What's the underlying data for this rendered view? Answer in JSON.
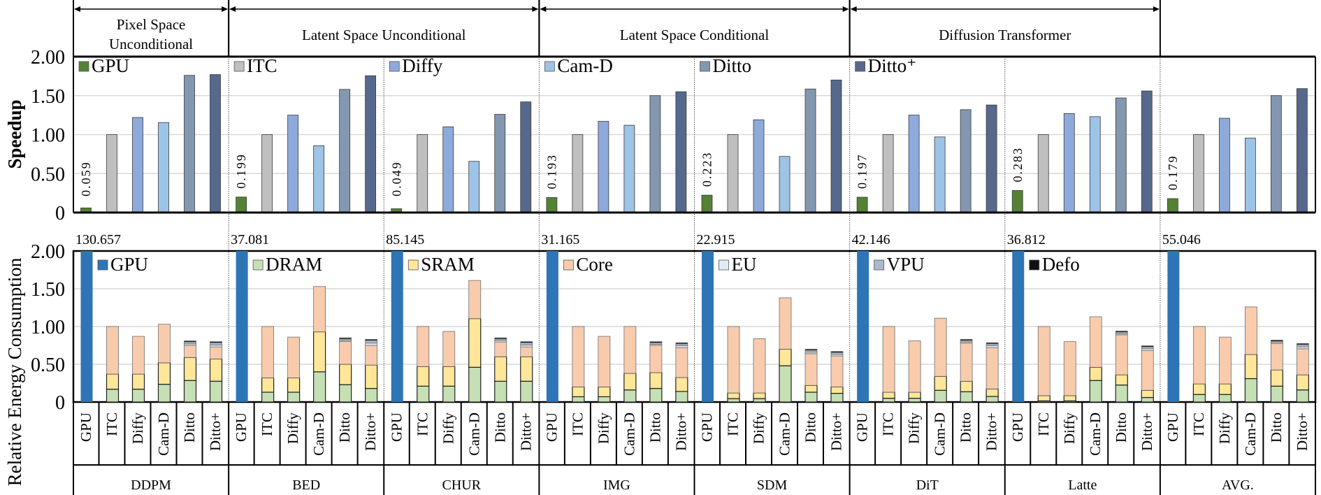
{
  "headers": [
    {
      "lines": [
        "Pixel Space",
        "Unconditional"
      ]
    },
    {
      "lines": [
        "Latent Space Unconditional"
      ]
    },
    {
      "lines": [
        "Latent Space Conditional"
      ]
    },
    {
      "lines": [
        "Diffusion Transformer"
      ]
    }
  ],
  "colors": {
    "speedup": {
      "GPU": "#548235",
      "ITC": "#bfbfbf",
      "Diffy": "#8eaadb",
      "Cam-D": "#9dc3e6",
      "Ditto": "#8497b0",
      "Ditto+": "#56698c"
    },
    "energy": {
      "GPU": "#2e75b6",
      "DRAM": "#c5e0b4",
      "SRAM": "#ffe699",
      "Core": "#f8cbad",
      "EU": "#deebf7",
      "VPU": "#adb9ca",
      "Defo": "#111111"
    }
  },
  "chart_data": [
    {
      "type": "bar",
      "ylabel": "Speedup",
      "ylim": [
        0,
        2
      ],
      "yticks": [
        "0",
        "0.50",
        "1.00",
        "1.50",
        "2.00"
      ],
      "grid": true,
      "categories": [
        "DDPM",
        "BED",
        "CHUR",
        "IMG",
        "SDM",
        "DiT",
        "Latte",
        "AVG."
      ],
      "bar_labels": [
        "GPU",
        "ITC",
        "Diffy",
        "Cam-D",
        "Ditto",
        "Ditto+"
      ],
      "legend": [
        "GPU",
        "ITC",
        "Diffy",
        "Cam-D",
        "Ditto",
        "Ditto⁺"
      ],
      "gpu_labels": [
        "0.059",
        "0.199",
        "0.049",
        "0.193",
        "0.223",
        "0.197",
        "0.283",
        "0.179"
      ],
      "series": [
        {
          "name": "GPU",
          "values": [
            0.059,
            0.199,
            0.049,
            0.193,
            0.223,
            0.197,
            0.283,
            0.179
          ]
        },
        {
          "name": "ITC",
          "values": [
            1.0,
            1.0,
            1.0,
            1.0,
            1.0,
            1.0,
            1.0,
            1.0
          ]
        },
        {
          "name": "Diffy",
          "values": [
            1.22,
            1.25,
            1.1,
            1.17,
            1.19,
            1.25,
            1.27,
            1.21
          ]
        },
        {
          "name": "Cam-D",
          "values": [
            1.155,
            0.857,
            0.657,
            1.12,
            0.72,
            0.97,
            1.23,
            0.955
          ]
        },
        {
          "name": "Ditto",
          "values": [
            1.76,
            1.58,
            1.26,
            1.5,
            1.585,
            1.32,
            1.47,
            1.5
          ]
        },
        {
          "name": "Ditto+",
          "values": [
            1.77,
            1.755,
            1.42,
            1.55,
            1.7,
            1.38,
            1.56,
            1.59
          ]
        }
      ]
    },
    {
      "type": "bar",
      "stacked": true,
      "ylabel": "Relative Energy Consumption",
      "ylim": [
        0,
        2
      ],
      "yticks": [
        "0",
        "0.50",
        "1.00",
        "1.50",
        "2.00"
      ],
      "grid": true,
      "categories": [
        "DDPM",
        "BED",
        "CHUR",
        "IMG",
        "SDM",
        "DiT",
        "Latte",
        "AVG."
      ],
      "bar_labels": [
        "GPU",
        "ITC",
        "Diffy",
        "Cam-D",
        "Ditto",
        "Ditto+"
      ],
      "legend": [
        "GPU",
        "DRAM",
        "SRAM",
        "Core",
        "EU",
        "VPU",
        "Defo"
      ],
      "components": [
        "DRAM",
        "SRAM",
        "Core",
        "EU",
        "VPU",
        "Defo"
      ],
      "gpu_values": [
        "130.657",
        "37.081",
        "85.145",
        "31.165",
        "22.915",
        "42.146",
        "36.812",
        "55.046"
      ],
      "stacks": [
        [
          [
            0.17,
            0.2,
            0.63,
            0,
            0,
            0
          ],
          [
            0.17,
            0.2,
            0.5,
            0,
            0,
            0
          ],
          [
            0.235,
            0.285,
            0.51,
            0,
            0,
            0
          ],
          [
            0.285,
            0.305,
            0.16,
            0.02,
            0.025,
            0.015
          ],
          [
            0.275,
            0.295,
            0.16,
            0.025,
            0.03,
            0.015
          ]
        ],
        [
          [
            0.13,
            0.19,
            0.68,
            0,
            0,
            0
          ],
          [
            0.13,
            0.19,
            0.54,
            0,
            0,
            0
          ],
          [
            0.4,
            0.53,
            0.6,
            0,
            0,
            0
          ],
          [
            0.23,
            0.27,
            0.3,
            0.015,
            0.02,
            0.015
          ],
          [
            0.18,
            0.31,
            0.26,
            0.03,
            0.035,
            0.015
          ]
        ],
        [
          [
            0.21,
            0.26,
            0.53,
            0,
            0,
            0
          ],
          [
            0.21,
            0.26,
            0.465,
            0,
            0,
            0
          ],
          [
            0.46,
            0.645,
            0.505,
            0,
            0,
            0
          ],
          [
            0.275,
            0.325,
            0.195,
            0.02,
            0.02,
            0.015
          ],
          [
            0.275,
            0.325,
            0.13,
            0.025,
            0.03,
            0.015
          ]
        ],
        [
          [
            0.07,
            0.13,
            0.8,
            0,
            0,
            0
          ],
          [
            0.07,
            0.13,
            0.67,
            0,
            0,
            0
          ],
          [
            0.16,
            0.22,
            0.62,
            0,
            0,
            0
          ],
          [
            0.18,
            0.21,
            0.36,
            0.015,
            0.02,
            0.015
          ],
          [
            0.14,
            0.185,
            0.395,
            0.025,
            0.025,
            0.015
          ]
        ],
        [
          [
            0.045,
            0.075,
            0.88,
            0,
            0,
            0
          ],
          [
            0.045,
            0.075,
            0.72,
            0,
            0,
            0
          ],
          [
            0.48,
            0.22,
            0.68,
            0,
            0,
            0
          ],
          [
            0.13,
            0.09,
            0.42,
            0.02,
            0.025,
            0.015
          ],
          [
            0.115,
            0.085,
            0.41,
            0.02,
            0.025,
            0.015
          ]
        ],
        [
          [
            0.05,
            0.08,
            0.87,
            0,
            0,
            0
          ],
          [
            0.05,
            0.08,
            0.68,
            0,
            0,
            0
          ],
          [
            0.155,
            0.185,
            0.77,
            0,
            0,
            0
          ],
          [
            0.136,
            0.139,
            0.505,
            0.015,
            0.02,
            0.015
          ],
          [
            0.074,
            0.099,
            0.547,
            0.025,
            0.025,
            0.015
          ]
        ],
        [
          [
            0.015,
            0.07,
            0.915,
            0,
            0,
            0
          ],
          [
            0.015,
            0.07,
            0.715,
            0,
            0,
            0
          ],
          [
            0.285,
            0.175,
            0.67,
            0,
            0,
            0
          ],
          [
            0.225,
            0.135,
            0.53,
            0.015,
            0.02,
            0.015
          ],
          [
            0.06,
            0.095,
            0.525,
            0.025,
            0.025,
            0.015
          ]
        ],
        [
          [
            0.1,
            0.14,
            0.76,
            0,
            0,
            0
          ],
          [
            0.1,
            0.14,
            0.62,
            0,
            0,
            0
          ],
          [
            0.31,
            0.32,
            0.63,
            0,
            0,
            0
          ],
          [
            0.21,
            0.215,
            0.35,
            0.015,
            0.015,
            0.015
          ],
          [
            0.16,
            0.2,
            0.345,
            0.025,
            0.03,
            0.015
          ]
        ]
      ]
    }
  ]
}
